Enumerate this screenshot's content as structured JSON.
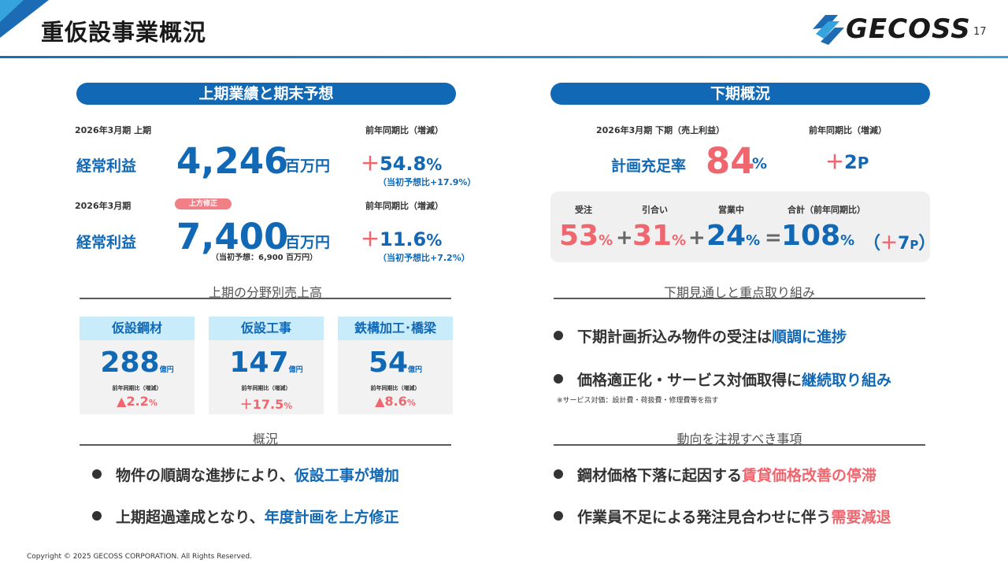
{
  "header": {
    "title": "重仮設事業概況",
    "logo_text": "GECOSS",
    "page_number": "17",
    "colors": {
      "primary": "#1168b5",
      "accent_red": "#f0666e",
      "card_header": "#c9ecfb"
    }
  },
  "left": {
    "pill": "上期業績と期末予想",
    "row1": {
      "period": "2026年3月期 上期",
      "yoy_label": "前年同期比（増減）",
      "metric": "経常利益",
      "value": "4,246",
      "unit": "百万円",
      "change_sign": "＋",
      "change": "54.8",
      "change_unit": "%",
      "vs_plan": "（当初予想比+17.9%）"
    },
    "row2": {
      "period": "2026年3月期",
      "badge": "上方修正",
      "yoy_label": "前年同期比（増減）",
      "metric": "経常利益",
      "value": "7,400",
      "unit": "百万円",
      "initial_forecast": "（当初予想：6,900 百万円）",
      "change_sign": "＋",
      "change": "11.6",
      "change_unit": "%",
      "vs_plan": "（当初予想比+7.2%）"
    },
    "segments_title": "上期の分野別売上高",
    "segments": [
      {
        "name": "仮設鋼材",
        "value": "288",
        "unit": "億円",
        "yoy_label": "前年同期比（増減）",
        "change": "▲2.2",
        "change_unit": "%"
      },
      {
        "name": "仮設工事",
        "value": "147",
        "unit": "億円",
        "yoy_label": "前年同期比（増減）",
        "change": "＋17.5",
        "change_unit": "%"
      },
      {
        "name": "鉄構加工･橋梁",
        "value": "54",
        "unit": "億円",
        "yoy_label": "前年同期比（増減）",
        "change": "▲8.6",
        "change_unit": "%"
      }
    ],
    "overview_title": "概況",
    "overview": [
      {
        "text": "物件の順調な進捗により、",
        "highlight": "仮設工事が増加"
      },
      {
        "text": "上期超過達成となり、",
        "highlight": "年度計画を上方修正"
      }
    ]
  },
  "right": {
    "pill": "下期概況",
    "period": "2026年3月期 下期（売上利益）",
    "yoy_label": "前年同期比（増減）",
    "metric": "計画充足率",
    "value": "84",
    "unit": "%",
    "change_sign": "＋",
    "change": "2",
    "change_unit": "P",
    "breakdown": {
      "labels": {
        "orders": "受注",
        "inquiries": "引合い",
        "sales": "営業中",
        "total": "合計（前年同期比）"
      },
      "orders": "53",
      "inquiries": "31",
      "sales": "24",
      "total": "108",
      "unit": "%",
      "plus": "+",
      "equals": "=",
      "total_change_open": "（",
      "total_change_sign": "＋",
      "total_change": "7",
      "total_change_unit": "P",
      "total_change_close": "）"
    },
    "outlook_title": "下期見通しと重点取り組み",
    "outlook": [
      {
        "text": "下期計画折込み物件の受注は",
        "highlight": "順調に進捗"
      },
      {
        "text": "価格適正化・サービス対価取得に",
        "highlight": "継続取り組み"
      }
    ],
    "footnote": "※サービス対価：設計費・荷扱費・修理費等を指す",
    "watch_title": "動向を注視すべき事項",
    "watch": [
      {
        "text": "鋼材価格下落に起因する",
        "highlight": "賃貸価格改善の停滞"
      },
      {
        "text": "作業員不足による発注見合わせに伴う",
        "highlight": "需要減退"
      }
    ]
  },
  "footer": {
    "copyright": "Copyright © 2025 GECOSS CORPORATION. All Rights Reserved."
  }
}
